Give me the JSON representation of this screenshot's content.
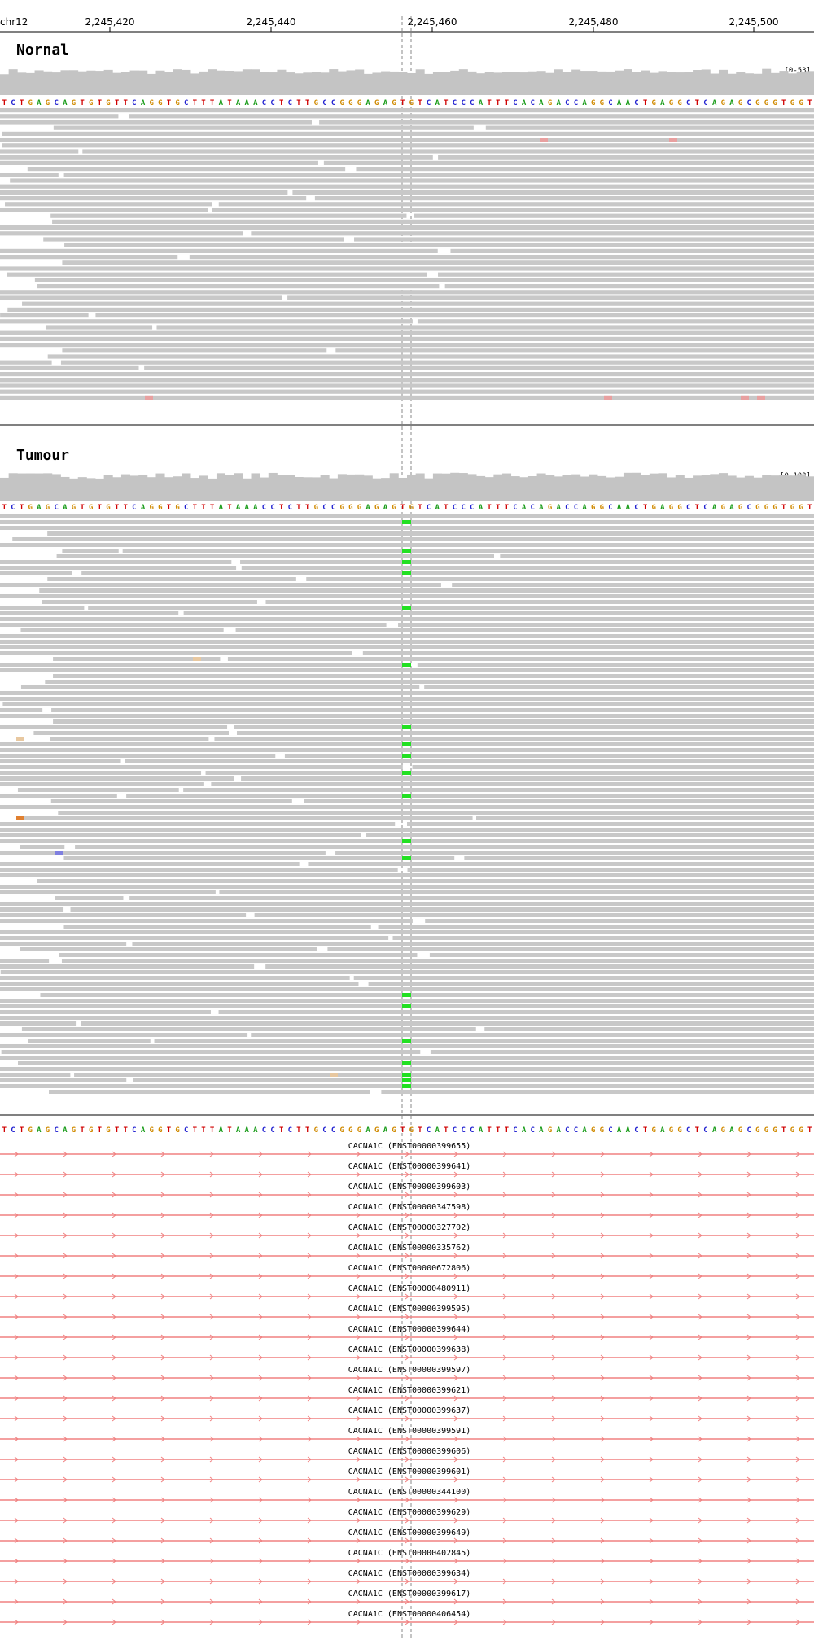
{
  "locus": {
    "chromosome": "chr12",
    "ticks": [
      "2,245,420",
      "2,245,440",
      "2,245,460",
      "2,245,480",
      "2,245,500"
    ]
  },
  "reference_sequence": "TCTGAGCAGTGTGTTCAGGTGCTTTATAAACCTCTTGCCGGGAGAGTGTCATCCCATTTCACAGACCAGGCAACTGAGGCTCAGAGCGGGTGGT",
  "base_colors": {
    "A": "#1a9c1a",
    "C": "#2020d0",
    "G": "#d08a00",
    "T": "#d00000"
  },
  "colors": {
    "read": "#c8c8c8",
    "coverage": "#c4c4c4",
    "mismatch_low": "#e8a0a0",
    "variant_G": "#22e022",
    "transcript": "#f08080",
    "center_line": "#888888"
  },
  "tracks": [
    {
      "name": "Nornal",
      "range": "[0-53]"
    },
    {
      "name": "Tumour",
      "range": "[0-103]"
    }
  ],
  "transcripts": [
    "CACNA1C (ENST00000399655)",
    "CACNA1C (ENST00000399641)",
    "CACNA1C (ENST00000399603)",
    "CACNA1C (ENST00000347598)",
    "CACNA1C (ENST00000327702)",
    "CACNA1C (ENST00000335762)",
    "CACNA1C (ENST00000672806)",
    "CACNA1C (ENST00000480911)",
    "CACNA1C (ENST00000399595)",
    "CACNA1C (ENST00000399644)",
    "CACNA1C (ENST00000399638)",
    "CACNA1C (ENST00000399597)",
    "CACNA1C (ENST00000399621)",
    "CACNA1C (ENST00000399637)",
    "CACNA1C (ENST00000399591)",
    "CACNA1C (ENST00000399606)",
    "CACNA1C (ENST00000399601)",
    "CACNA1C (ENST00000344100)",
    "CACNA1C (ENST00000399629)",
    "CACNA1C (ENST00000399649)",
    "CACNA1C (ENST00000402845)",
    "CACNA1C (ENST00000399634)",
    "CACNA1C (ENST00000399617)",
    "CACNA1C (ENST00000406454)"
  ]
}
